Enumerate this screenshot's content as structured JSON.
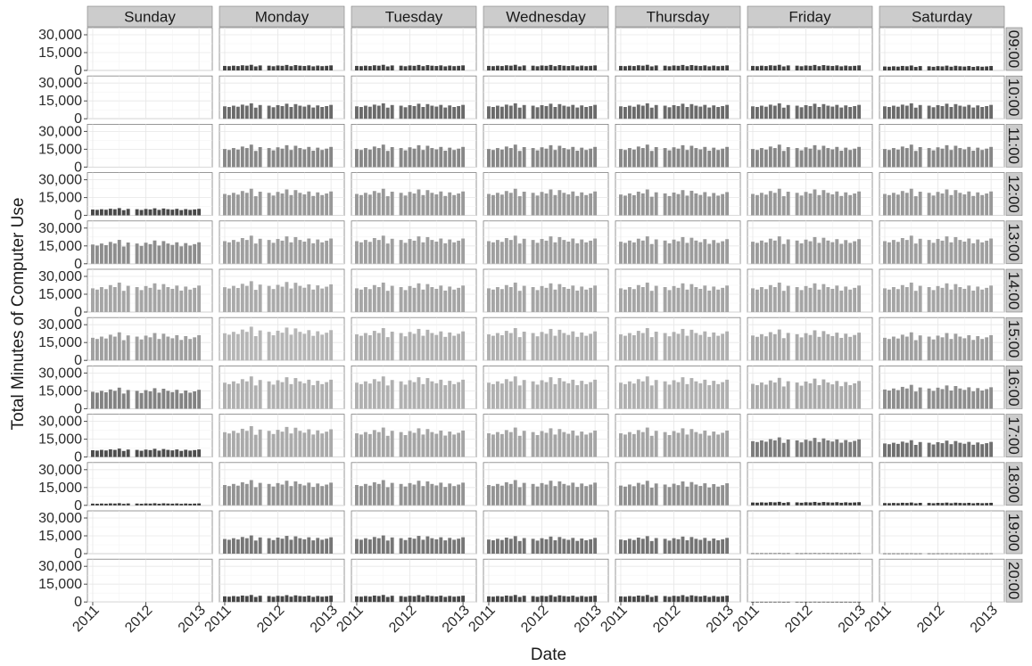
{
  "chart_data": {
    "type": "bar",
    "layout": "facet_grid",
    "xlabel": "Date",
    "ylabel": "Total Minutes of Computer Use",
    "ylim": [
      0,
      36000
    ],
    "xlim": [
      2010.9,
      2013.25
    ],
    "y_ticks": [
      0,
      15000,
      30000
    ],
    "y_tick_labels": [
      "0",
      "15,000",
      "30,000"
    ],
    "x_ticks": [
      2011,
      2012,
      2013
    ],
    "x_tick_labels": [
      "2011",
      "2012",
      "2013"
    ],
    "grid": true,
    "legend": "none",
    "columns": [
      "Sunday",
      "Monday",
      "Tuesday",
      "Wednesday",
      "Thursday",
      "Friday",
      "Saturday"
    ],
    "rows": [
      "09:00",
      "10:00",
      "11:00",
      "12:00",
      "13:00",
      "14:00",
      "15:00",
      "16:00",
      "17:00",
      "18:00",
      "19:00",
      "20:00"
    ],
    "months": [
      "2011-01",
      "2011-02",
      "2011-03",
      "2011-04",
      "2011-05",
      "2011-06",
      "2011-07",
      "2011-08",
      "2011-09",
      "2011-10",
      "2011-11",
      "2011-12",
      "2012-01",
      "2012-02",
      "2012-03",
      "2012-04",
      "2012-05",
      "2012-06",
      "2012-07",
      "2012-08",
      "2012-09",
      "2012-10",
      "2012-11",
      "2012-12",
      "2013-01"
    ],
    "missing_months": [
      "2011-10"
    ],
    "color_scale": {
      "low": "#2a2a2a",
      "high": "#d9d9d9",
      "domain": [
        0,
        30000
      ]
    },
    "panels": {
      "Sunday": {
        "09:00": 0,
        "10:00": 0,
        "11:00": 0,
        "12:00": 5200,
        "13:00": 17000,
        "14:00": 21000,
        "15:00": 20000,
        "16:00": 15000,
        "17:00": 6000,
        "18:00": 1500,
        "19:00": 0,
        "20:00": 0
      },
      "Monday": {
        "09:00": 4000,
        "10:00": 11000,
        "11:00": 16000,
        "12:00": 19000,
        "13:00": 20000,
        "14:00": 22000,
        "15:00": 24000,
        "16:00": 23000,
        "17:00": 22000,
        "18:00": 18000,
        "19:00": 13000,
        "20:00": 5000
      },
      "Tuesday": {
        "09:00": 4000,
        "10:00": 11000,
        "11:00": 16000,
        "12:00": 19000,
        "13:00": 20000,
        "14:00": 21000,
        "15:00": 23000,
        "16:00": 23000,
        "17:00": 21000,
        "18:00": 18000,
        "19:00": 13000,
        "20:00": 5000
      },
      "Wednesday": {
        "09:00": 4000,
        "10:00": 11000,
        "11:00": 16000,
        "12:00": 19000,
        "13:00": 20000,
        "14:00": 21000,
        "15:00": 23000,
        "16:00": 23000,
        "17:00": 21000,
        "18:00": 18000,
        "19:00": 12500,
        "20:00": 5000
      },
      "Thursday": {
        "09:00": 4000,
        "10:00": 11000,
        "11:00": 16000,
        "12:00": 18500,
        "13:00": 19500,
        "14:00": 21000,
        "15:00": 23000,
        "16:00": 23000,
        "17:00": 21000,
        "18:00": 17500,
        "19:00": 12500,
        "20:00": 5000
      },
      "Friday": {
        "09:00": 4000,
        "10:00": 11000,
        "11:00": 16000,
        "12:00": 19000,
        "13:00": 19500,
        "14:00": 21000,
        "15:00": 22000,
        "16:00": 22000,
        "17:00": 14000,
        "18:00": 2500,
        "19:00": 300,
        "20:00": 200
      },
      "Saturday": {
        "09:00": 3500,
        "10:00": 11000,
        "11:00": 16000,
        "12:00": 19000,
        "13:00": 20000,
        "14:00": 21000,
        "15:00": 20000,
        "16:00": 17000,
        "17:00": 12000,
        "18:00": 2000,
        "19:00": 200,
        "20:00": 0
      }
    },
    "monthly_variation": [
      0.95,
      0.9,
      1.0,
      0.92,
      1.08,
      1.0,
      1.18,
      0.85,
      1.05,
      1.0,
      0.88,
      1.04,
      0.97,
      1.15,
      0.9,
      1.12,
      1.0,
      0.93,
      1.06,
      0.86,
      1.02,
      0.9,
      0.97,
      1.06
    ]
  }
}
